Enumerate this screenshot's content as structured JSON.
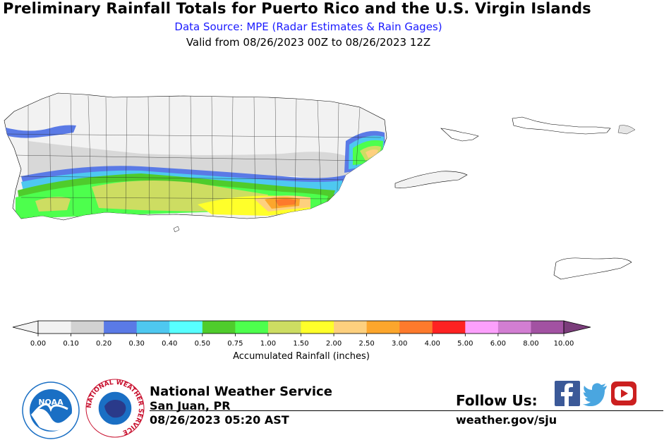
{
  "header": {
    "title": "Preliminary Rainfall Totals for Puerto Rico and the U.S. Virgin Islands",
    "data_source": "Data Source: MPE (Radar Estimates & Rain Gages)",
    "valid": "Valid from 08/26/2023 00Z to 08/26/2023 12Z"
  },
  "colorbar": {
    "label": "Accumulated Rainfall (inches)",
    "ticks": [
      "0.00",
      "0.10",
      "0.20",
      "0.30",
      "0.40",
      "0.50",
      "0.75",
      "1.00",
      "1.50",
      "2.00",
      "2.50",
      "3.00",
      "4.00",
      "5.00",
      "6.00",
      "8.00",
      "10.00"
    ],
    "colors": [
      "#f2f2f2",
      "#d2d2d2",
      "#5a7ae6",
      "#4ec8f0",
      "#57ffff",
      "#4fcc2c",
      "#4dff4d",
      "#cddd62",
      "#ffff2a",
      "#fdd07e",
      "#fca62c",
      "#fd7a2c",
      "#fe2222",
      "#fca0fc",
      "#d27ed2",
      "#a252a2"
    ],
    "extend_low_color": "#f2f2f2",
    "extend_high_color": "#7b3d7b"
  },
  "footer": {
    "agency": "National Weather Service",
    "office": "San Juan, PR",
    "issued": "08/26/2023 05:20 AST",
    "follow": "Follow Us:",
    "website": "weather.gov/sju"
  },
  "logos": {
    "noaa_text": "NOAA",
    "nws_ring_text": "NATIONAL WEATHER SERVICE"
  },
  "social": [
    "facebook-icon",
    "twitter-icon",
    "youtube-icon"
  ],
  "colors": {
    "facebook": "#3b5998",
    "twitter": "#4aa6e0",
    "youtube": "#cc2020",
    "noaa_blue": "#1a6fc4",
    "nws_red": "#c8102e"
  }
}
